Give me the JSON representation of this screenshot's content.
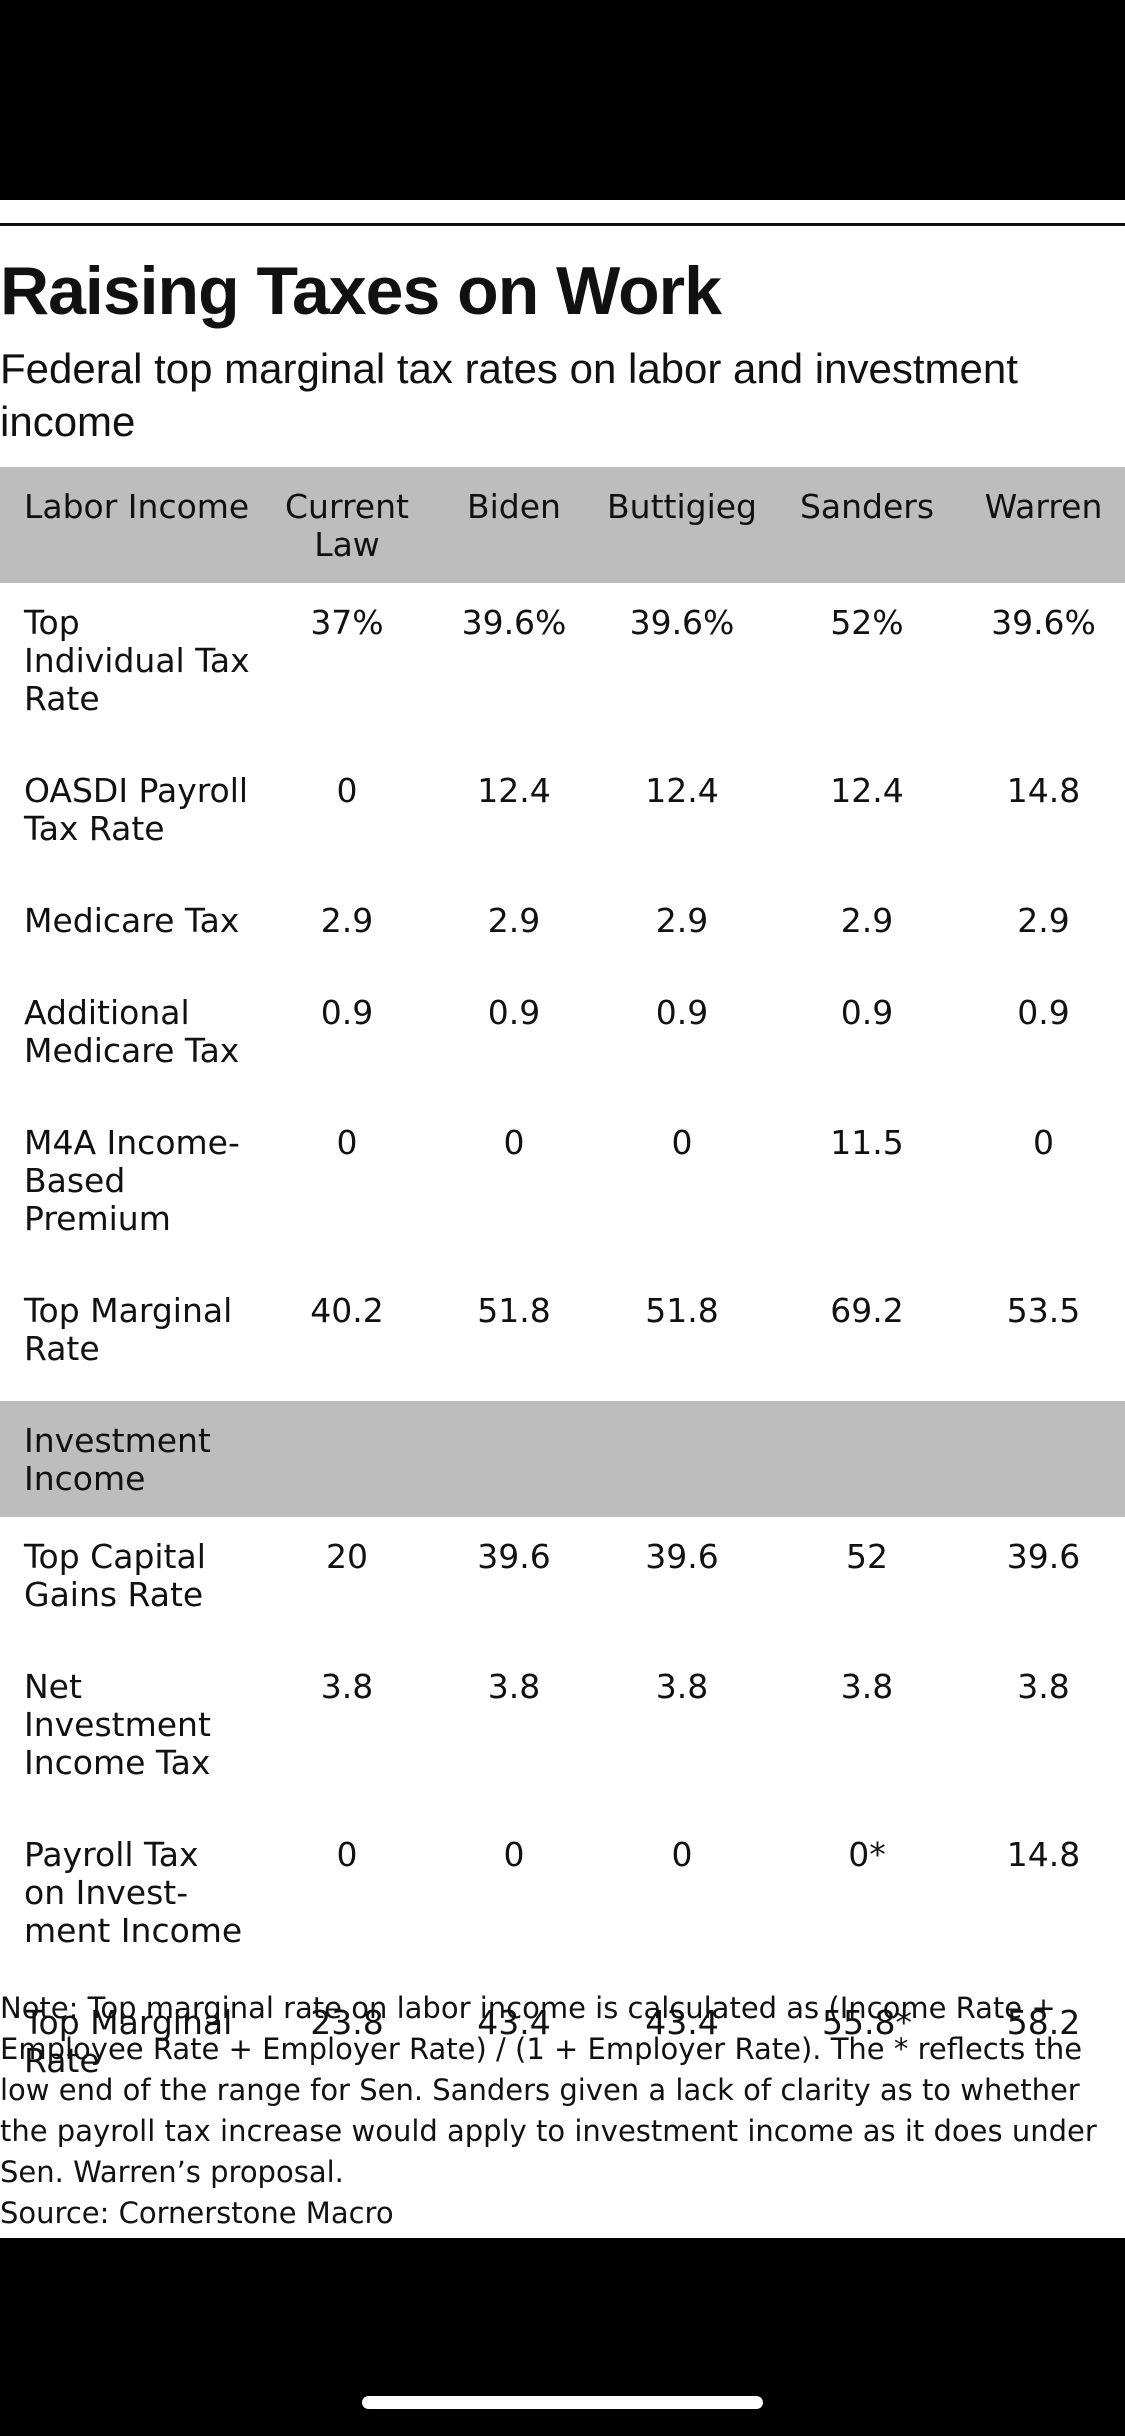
{
  "title": "Raising Taxes on Work",
  "subtitle": "Federal top marginal tax rates on labor and investment income",
  "table": {
    "columns": [
      "Current Law",
      "Biden",
      "Buttigieg",
      "Sanders",
      "Warren"
    ],
    "sections": [
      {
        "label": "Labor Income",
        "rows": [
          {
            "label": "Top Individual Tax Rate",
            "values": [
              "37%",
              "39.6%",
              "39.6%",
              "52%",
              "39.6%"
            ]
          },
          {
            "label": "OASDI Payroll Tax Rate",
            "values": [
              "0",
              "12.4",
              "12.4",
              "12.4",
              "14.8"
            ]
          },
          {
            "label": "Medicare Tax",
            "values": [
              "2.9",
              "2.9",
              "2.9",
              "2.9",
              "2.9"
            ]
          },
          {
            "label": "Additional Medicare Tax",
            "values": [
              "0.9",
              "0.9",
              "0.9",
              "0.9",
              "0.9"
            ]
          },
          {
            "label": "M4A Income-Based Premium",
            "values": [
              "0",
              "0",
              "0",
              "11.5",
              "0"
            ]
          },
          {
            "label": "Top Marginal Rate",
            "values": [
              "40.2",
              "51.8",
              "51.8",
              "69.2",
              "53.5"
            ]
          }
        ]
      },
      {
        "label": "Investment Income",
        "rows": [
          {
            "label": "Top Capital Gains Rate",
            "values": [
              "20",
              "39.6",
              "39.6",
              "52",
              "39.6"
            ]
          },
          {
            "label": "Net Investment Income Tax",
            "values": [
              "3.8",
              "3.8",
              "3.8",
              "3.8",
              "3.8"
            ]
          },
          {
            "label": "Payroll Tax on Invest-ment Income",
            "values": [
              "0",
              "0",
              "0",
              "0*",
              "14.8"
            ]
          },
          {
            "label": "Top Marginal Rate",
            "values": [
              "23.8",
              "43.4",
              "43.4",
              "55.8*",
              "58.2"
            ]
          }
        ]
      }
    ]
  },
  "note": "Note: Top marginal rate on labor income is calculated as (Income Rate + Employee Rate + Employer Rate) / (1 + Employer Rate). The * reflects the low end of the range for Sen. Sanders given a lack of clarity as to whether the payroll tax increase would apply to investment income as it does under Sen. Warren’s proposal.",
  "source": "Source: Cornerstone Macro"
}
